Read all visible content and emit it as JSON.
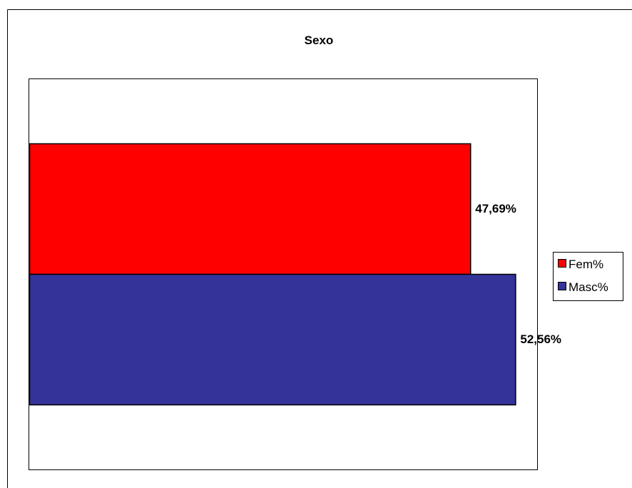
{
  "chart_data": {
    "type": "bar",
    "orientation": "horizontal",
    "title": "Sexo",
    "xlabel": "",
    "ylabel": "",
    "grid": false,
    "legend_position": "right",
    "xlim": [
      0,
      55
    ],
    "series": [
      {
        "name": "Fem%",
        "value": 47.69,
        "label": "47,69%",
        "color": "#ff0000"
      },
      {
        "name": "Masc%",
        "value": 52.56,
        "label": "52,56%",
        "color": "#333399"
      }
    ]
  }
}
